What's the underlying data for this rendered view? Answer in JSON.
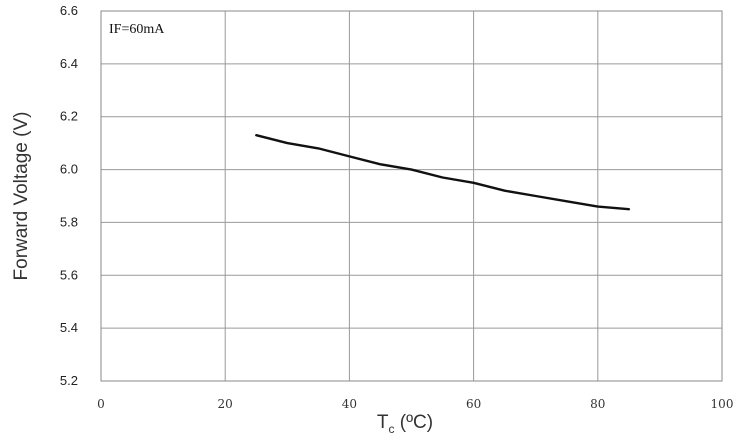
{
  "chart_data": {
    "type": "line",
    "annotation": "IF=60mA",
    "xlabel_main": "T",
    "xlabel_sub": "c",
    "xlabel_unit": " (ºC)",
    "ylabel": "Forward Voltage (V)",
    "xlim": [
      0,
      100
    ],
    "ylim": [
      5.2,
      6.6
    ],
    "xticks": [
      "0",
      "20",
      "40",
      "60",
      "80",
      "100"
    ],
    "yticks": [
      "5.2",
      "5.4",
      "5.6",
      "5.8",
      "6.0",
      "6.2",
      "6.4",
      "6.6"
    ],
    "grid": true,
    "series": [
      {
        "color": "#111111",
        "x": [
          25,
          30,
          35,
          40,
          45,
          50,
          55,
          60,
          65,
          70,
          75,
          80,
          85
        ],
        "y": [
          6.13,
          6.1,
          6.08,
          6.05,
          6.02,
          6.0,
          5.97,
          5.95,
          5.92,
          5.9,
          5.88,
          5.86,
          5.85
        ]
      }
    ]
  }
}
